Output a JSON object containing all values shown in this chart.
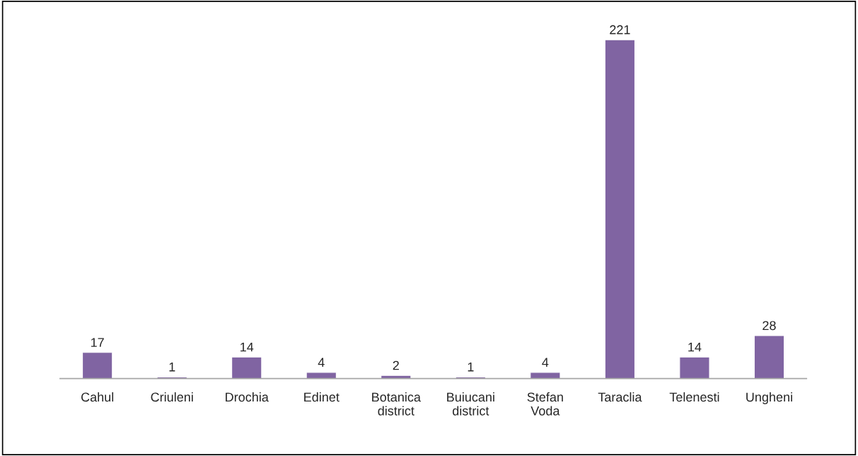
{
  "chart_data": {
    "type": "bar",
    "categories": [
      "Cahul",
      "Criuleni",
      "Drochia",
      "Edinet",
      "Botanica district",
      "Buiucani district",
      "Stefan Voda",
      "Taraclia",
      "Telenesti",
      "Ungheni"
    ],
    "values": [
      17,
      1,
      14,
      4,
      2,
      1,
      4,
      221,
      14,
      28
    ],
    "color": "#8064a2",
    "data_labels": true,
    "grid": false,
    "legend": false
  }
}
